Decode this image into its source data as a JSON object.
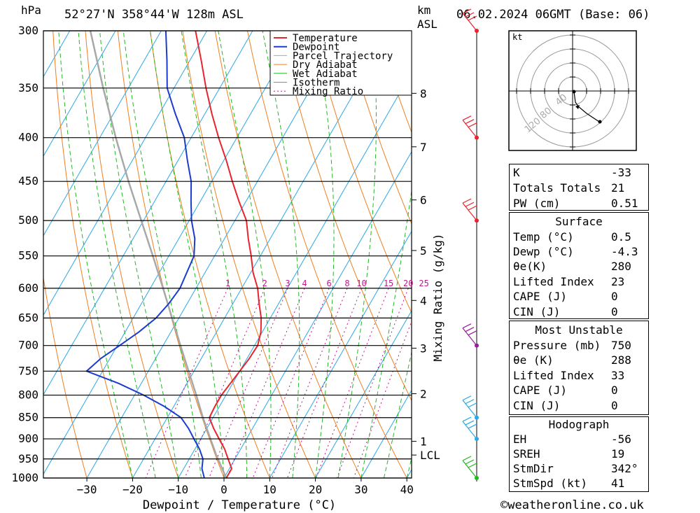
{
  "header": {
    "pressure_unit": "hPa",
    "location": "52°27'N 358°44'W 128m ASL",
    "height_unit_line1": "km",
    "height_unit_line2": "ASL",
    "datetime": "06.02.2024 06GMT (Base: 06)"
  },
  "chart_data": {
    "type": "line",
    "xlabel": "Dewpoint / Temperature (°C)",
    "ylabel": "hPa",
    "xlim": [
      -40,
      40
    ],
    "x_ticks": [
      -30,
      -20,
      -10,
      0,
      10,
      20,
      30,
      40
    ],
    "pressure_levels": [
      300,
      350,
      400,
      450,
      500,
      550,
      600,
      650,
      700,
      750,
      800,
      850,
      900,
      950,
      1000
    ],
    "height_km_labels": [
      {
        "km": "8",
        "p": 355
      },
      {
        "km": "7",
        "p": 410
      },
      {
        "km": "6",
        "p": 473
      },
      {
        "km": "5",
        "p": 542
      },
      {
        "km": "4",
        "p": 620
      },
      {
        "km": "3",
        "p": 705
      },
      {
        "km": "2",
        "p": 797
      },
      {
        "km": "1",
        "p": 906
      },
      {
        "km": "LCL",
        "p": 940
      }
    ],
    "mixing_ratio_axis_label": "Mixing Ratio (g/kg)",
    "mixing_ratio_labels": [
      "1",
      "2",
      "3",
      "4",
      "6",
      "8",
      "10",
      "15",
      "20",
      "25"
    ],
    "legend": [
      "Temperature",
      "Dewpoint",
      "Parcel Trajectory",
      "Dry Adiabat",
      "Wet Adiabat",
      "Isotherm",
      "Mixing Ratio"
    ],
    "colors": {
      "temperature": "#e8242c",
      "dewpoint": "#1a3ccf",
      "parcel": "#a8a8a8",
      "dry_adiabat": "#f07f1f",
      "wet_adiabat": "#22b822",
      "isotherm": "#2aa8e8",
      "mixing_ratio": "#c0188c"
    },
    "series": [
      {
        "name": "Temperature",
        "points": [
          [
            1000,
            0.5
          ],
          [
            975,
            0.5
          ],
          [
            950,
            -1.5
          ],
          [
            925,
            -3.5
          ],
          [
            900,
            -6.0
          ],
          [
            875,
            -8.5
          ],
          [
            850,
            -10.8
          ],
          [
            825,
            -11.0
          ],
          [
            800,
            -11.0
          ],
          [
            775,
            -10.5
          ],
          [
            750,
            -10.0
          ],
          [
            725,
            -9.5
          ],
          [
            700,
            -9.3
          ],
          [
            675,
            -10.3
          ],
          [
            650,
            -12.0
          ],
          [
            625,
            -14.3
          ],
          [
            600,
            -16.5
          ],
          [
            575,
            -19.5
          ],
          [
            550,
            -22.0
          ],
          [
            525,
            -24.8
          ],
          [
            500,
            -27.5
          ],
          [
            475,
            -31.5
          ],
          [
            450,
            -35.5
          ],
          [
            425,
            -39.5
          ],
          [
            400,
            -44.0
          ],
          [
            375,
            -48.5
          ],
          [
            350,
            -53.0
          ],
          [
            325,
            -57.5
          ],
          [
            300,
            -62.5
          ]
        ]
      },
      {
        "name": "Dewpoint",
        "points": [
          [
            1000,
            -4.3
          ],
          [
            975,
            -6.0
          ],
          [
            950,
            -7.0
          ],
          [
            925,
            -9.0
          ],
          [
            900,
            -11.5
          ],
          [
            875,
            -14.0
          ],
          [
            850,
            -17.0
          ],
          [
            825,
            -22.0
          ],
          [
            800,
            -28.0
          ],
          [
            775,
            -35.0
          ],
          [
            750,
            -43.5
          ],
          [
            725,
            -42.0
          ],
          [
            700,
            -39.5
          ],
          [
            675,
            -37.0
          ],
          [
            650,
            -35.0
          ],
          [
            625,
            -34.0
          ],
          [
            600,
            -33.5
          ],
          [
            575,
            -34.0
          ],
          [
            550,
            -34.5
          ],
          [
            525,
            -36.5
          ],
          [
            500,
            -39.5
          ],
          [
            475,
            -42.0
          ],
          [
            450,
            -44.5
          ],
          [
            425,
            -48.0
          ],
          [
            400,
            -51.5
          ],
          [
            375,
            -56.5
          ],
          [
            350,
            -61.5
          ],
          [
            325,
            -65.0
          ],
          [
            300,
            -69.0
          ]
        ]
      },
      {
        "name": "Parcel Trajectory",
        "points": [
          [
            1000,
            0.5
          ],
          [
            975,
            -1.6
          ],
          [
            950,
            -3.7
          ],
          [
            940,
            -4.6
          ],
          [
            925,
            -5.8
          ],
          [
            900,
            -7.9
          ],
          [
            850,
            -12.2
          ],
          [
            800,
            -16.5
          ],
          [
            750,
            -21.2
          ],
          [
            700,
            -26.2
          ],
          [
            650,
            -31.5
          ],
          [
            600,
            -37.2
          ],
          [
            550,
            -43.5
          ],
          [
            500,
            -50.5
          ],
          [
            450,
            -58.2
          ],
          [
            400,
            -66.5
          ],
          [
            350,
            -75.5
          ],
          [
            300,
            -85.5
          ]
        ]
      }
    ],
    "wind_barbs": [
      {
        "p": 300,
        "color": "#e8242c"
      },
      {
        "p": 400,
        "color": "#e8242c"
      },
      {
        "p": 500,
        "color": "#e8242c"
      },
      {
        "p": 700,
        "color": "#9a1aa0"
      },
      {
        "p": 850,
        "color": "#2aa8e8"
      },
      {
        "p": 900,
        "color": "#2aa8e8"
      },
      {
        "p": 1000,
        "color": "#22b822"
      }
    ]
  },
  "hodograph": {
    "unit": "kt",
    "ring_labels": [
      "40",
      "80",
      "120"
    ]
  },
  "indices": {
    "top": [
      {
        "label": "K",
        "value": "-33"
      },
      {
        "label": "Totals Totals",
        "value": "21"
      },
      {
        "label": "PW (cm)",
        "value": "0.51"
      }
    ],
    "surface": {
      "title": "Surface",
      "rows": [
        {
          "label": "Temp (°C)",
          "value": "0.5"
        },
        {
          "label": "Dewp (°C)",
          "value": "-4.3"
        },
        {
          "label": "θe(K)",
          "value": "280"
        },
        {
          "label": "Lifted Index",
          "value": "23"
        },
        {
          "label": "CAPE (J)",
          "value": "0"
        },
        {
          "label": "CIN (J)",
          "value": "0"
        }
      ]
    },
    "most_unstable": {
      "title": "Most Unstable",
      "rows": [
        {
          "label": "Pressure (mb)",
          "value": "750"
        },
        {
          "label": "θe (K)",
          "value": "288"
        },
        {
          "label": "Lifted Index",
          "value": "33"
        },
        {
          "label": "CAPE (J)",
          "value": "0"
        },
        {
          "label": "CIN (J)",
          "value": "0"
        }
      ]
    },
    "hodograph": {
      "title": "Hodograph",
      "rows": [
        {
          "label": "EH",
          "value": "-56"
        },
        {
          "label": "SREH",
          "value": "19"
        },
        {
          "label": "StmDir",
          "value": "342°"
        },
        {
          "label": "StmSpd (kt)",
          "value": "41"
        }
      ]
    }
  },
  "footer": {
    "copyright": "©weatheronline.co.uk"
  }
}
